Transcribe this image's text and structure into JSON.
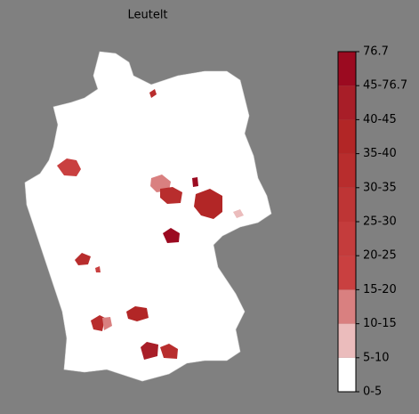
{
  "title": "Leutelt",
  "legend": {
    "labels": [
      "0-5",
      "5-10",
      "10-15",
      "15-20",
      "20-25",
      "25-30",
      "30-35",
      "35-40",
      "40-45",
      "45-76.7",
      "76.7"
    ],
    "colors": [
      "#ffffff",
      "#ebbcbc",
      "#d98080",
      "#c94040",
      "#c43c3c",
      "#be3535",
      "#b82d2d",
      "#b22626",
      "#a81e28",
      "#9b0a20"
    ]
  }
}
